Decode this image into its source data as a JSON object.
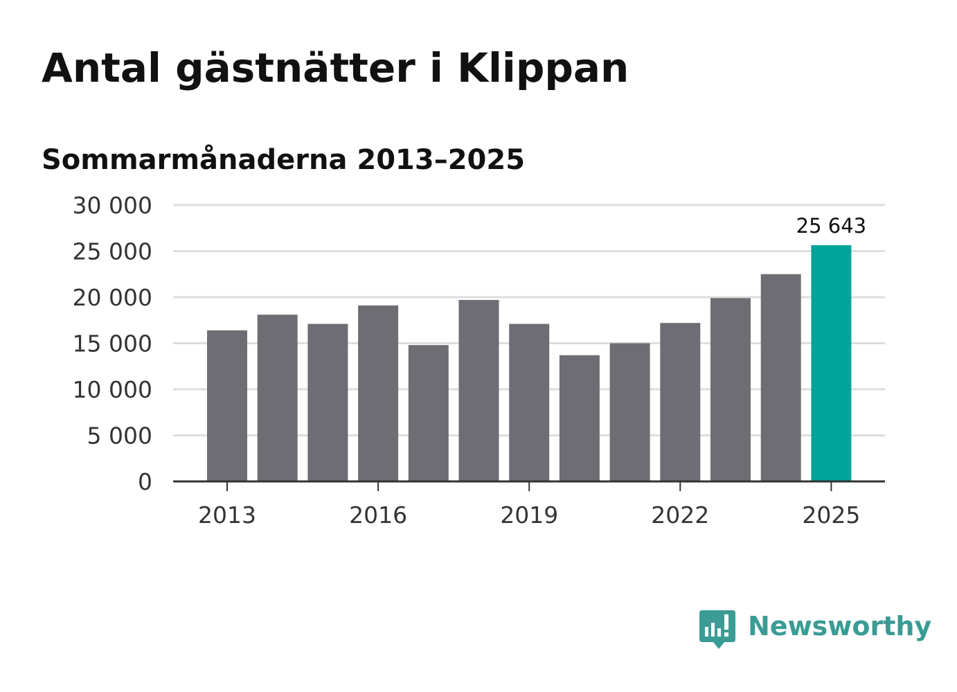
{
  "title": "Antal gästnätter i Klippan",
  "subtitle": "Sommarmånaderna 2013–2025",
  "brand": {
    "name": "Newsworthy",
    "icon": "newsworthy-logo-icon",
    "color": "#3a9c94"
  },
  "colors": {
    "bar": "#6e6d73",
    "highlight": "#00a49a",
    "grid": "#dddddd",
    "axis": "#333333"
  },
  "chart_data": {
    "type": "bar",
    "categories": [
      "2013",
      "2014",
      "2015",
      "2016",
      "2017",
      "2018",
      "2019",
      "2020",
      "2021",
      "2022",
      "2023",
      "2024",
      "2025"
    ],
    "values": [
      16400,
      18100,
      17100,
      19100,
      14800,
      19700,
      17100,
      13700,
      15000,
      17200,
      19900,
      22500,
      25643
    ],
    "highlight_index": 12,
    "x_tick_labels": [
      "2013",
      "2016",
      "2019",
      "2022",
      "2025"
    ],
    "y_tick_labels": [
      "0",
      "5 000",
      "10 000",
      "15 000",
      "20 000",
      "25 000",
      "30 000"
    ],
    "y_ticks": [
      0,
      5000,
      10000,
      15000,
      20000,
      25000,
      30000
    ],
    "ylim": [
      0,
      30000
    ],
    "grid": true,
    "annotations": [
      {
        "category": "2025",
        "label": "25 643"
      }
    ]
  }
}
